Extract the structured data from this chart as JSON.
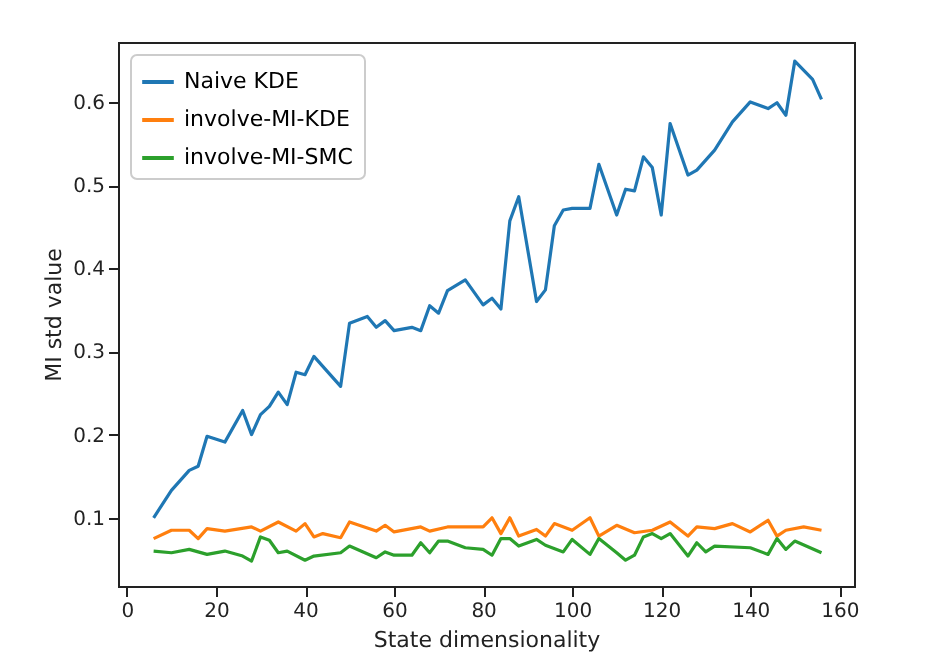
{
  "chart_data": {
    "type": "line",
    "xlabel": "State dimensionality",
    "ylabel": "MI std value",
    "xlim": [
      -2,
      163.3
    ],
    "xticks": [
      0,
      20,
      40,
      60,
      80,
      100,
      120,
      140,
      160
    ],
    "ylim": [
      0.018,
      0.672
    ],
    "yticks": [
      0.1,
      0.2,
      0.3,
      0.4,
      0.5,
      0.6
    ],
    "grid": false,
    "legend": "top left",
    "marker": "none",
    "line_style": "solid",
    "series": [
      {
        "name": "Naive KDE",
        "color": "#1f77b4",
        "x": [
          6,
          10,
          14,
          16,
          18,
          22,
          26,
          28,
          30,
          32,
          34,
          36,
          38,
          40,
          42,
          48,
          50,
          54,
          56,
          58,
          60,
          64,
          66,
          68,
          70,
          72,
          76,
          80,
          82,
          84,
          86,
          88,
          92,
          94,
          96,
          98,
          100,
          104,
          106,
          110,
          112,
          114,
          116,
          118,
          120,
          122,
          126,
          128,
          132,
          136,
          140,
          144,
          146,
          148,
          150,
          154,
          156
        ],
        "values": [
          0.1,
          0.133,
          0.157,
          0.162,
          0.198,
          0.191,
          0.229,
          0.2,
          0.224,
          0.234,
          0.251,
          0.236,
          0.275,
          0.272,
          0.294,
          0.258,
          0.334,
          0.342,
          0.329,
          0.337,
          0.325,
          0.329,
          0.325,
          0.355,
          0.346,
          0.373,
          0.386,
          0.356,
          0.364,
          0.351,
          0.457,
          0.486,
          0.36,
          0.374,
          0.451,
          0.47,
          0.472,
          0.472,
          0.525,
          0.464,
          0.495,
          0.493,
          0.534,
          0.521,
          0.464,
          0.574,
          0.512,
          0.518,
          0.542,
          0.576,
          0.6,
          0.592,
          0.599,
          0.584,
          0.649,
          0.627,
          0.603
        ]
      },
      {
        "name": "involve-MI-KDE",
        "color": "#ff7f0e",
        "x": [
          6,
          10,
          14,
          16,
          18,
          22,
          28,
          30,
          34,
          38,
          40,
          42,
          44,
          48,
          50,
          56,
          58,
          60,
          66,
          68,
          72,
          80,
          82,
          84,
          86,
          88,
          92,
          94,
          96,
          100,
          104,
          106,
          110,
          114,
          118,
          122,
          126,
          128,
          132,
          136,
          140,
          144,
          146,
          148,
          152,
          156
        ],
        "values": [
          0.075,
          0.085,
          0.085,
          0.075,
          0.087,
          0.084,
          0.089,
          0.084,
          0.095,
          0.084,
          0.093,
          0.077,
          0.081,
          0.076,
          0.095,
          0.084,
          0.091,
          0.083,
          0.089,
          0.084,
          0.089,
          0.089,
          0.1,
          0.081,
          0.1,
          0.078,
          0.086,
          0.078,
          0.093,
          0.085,
          0.1,
          0.078,
          0.091,
          0.082,
          0.085,
          0.095,
          0.078,
          0.089,
          0.087,
          0.093,
          0.083,
          0.097,
          0.078,
          0.085,
          0.089,
          0.085
        ]
      },
      {
        "name": "involve-MI-SMC",
        "color": "#2ca02c",
        "x": [
          6,
          10,
          14,
          18,
          22,
          26,
          28,
          30,
          32,
          34,
          36,
          40,
          42,
          48,
          50,
          56,
          58,
          60,
          64,
          66,
          68,
          70,
          72,
          76,
          80,
          82,
          84,
          86,
          88,
          92,
          94,
          98,
          100,
          104,
          106,
          110,
          112,
          114,
          116,
          118,
          120,
          122,
          126,
          128,
          130,
          132,
          140,
          144,
          146,
          148,
          150,
          156
        ],
        "values": [
          0.06,
          0.058,
          0.062,
          0.056,
          0.06,
          0.054,
          0.048,
          0.077,
          0.073,
          0.058,
          0.06,
          0.049,
          0.054,
          0.058,
          0.066,
          0.052,
          0.059,
          0.055,
          0.055,
          0.07,
          0.058,
          0.072,
          0.072,
          0.064,
          0.062,
          0.055,
          0.075,
          0.075,
          0.066,
          0.074,
          0.067,
          0.059,
          0.074,
          0.056,
          0.075,
          0.058,
          0.049,
          0.055,
          0.077,
          0.081,
          0.075,
          0.081,
          0.054,
          0.07,
          0.059,
          0.066,
          0.064,
          0.056,
          0.075,
          0.062,
          0.072,
          0.058
        ]
      }
    ]
  }
}
